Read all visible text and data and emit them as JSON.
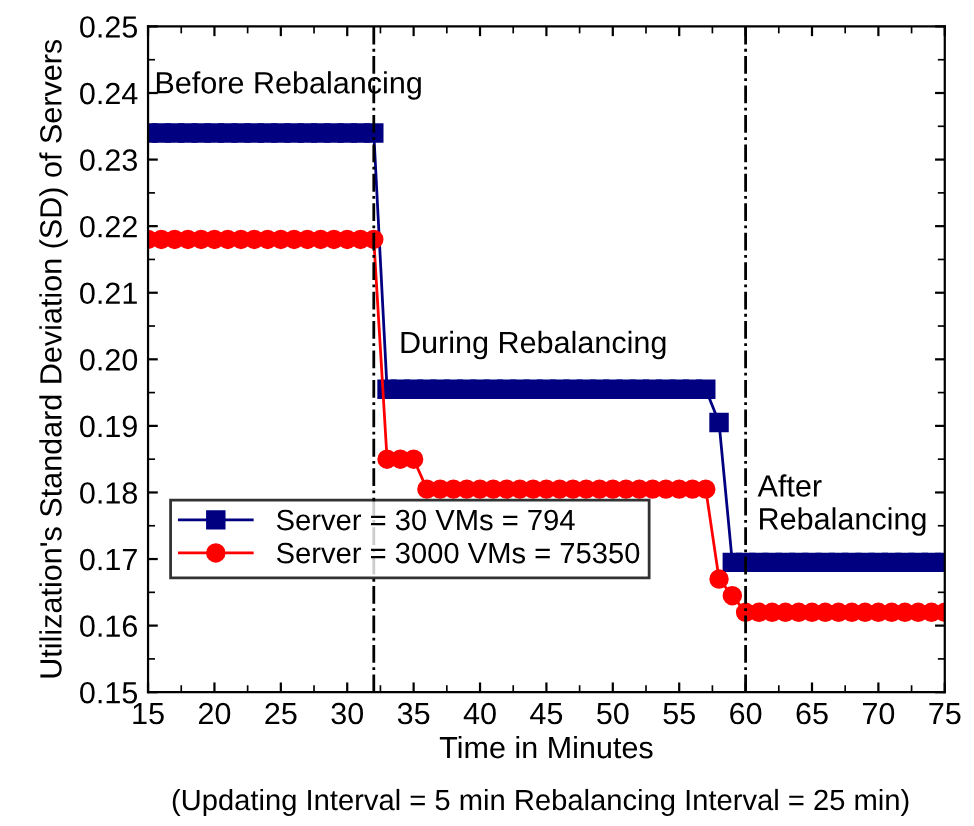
{
  "chart_data": {
    "type": "line",
    "xlabel": "Time in Minutes",
    "ylabel": "Utilization's Standard Deviation (SD) of Servers",
    "x": [
      15,
      16,
      17,
      18,
      19,
      20,
      21,
      22,
      23,
      24,
      25,
      26,
      27,
      28,
      29,
      30,
      31,
      32,
      33,
      34,
      35,
      36,
      37,
      38,
      39,
      40,
      41,
      42,
      43,
      44,
      45,
      46,
      47,
      48,
      49,
      50,
      51,
      52,
      53,
      54,
      55,
      56,
      57,
      58,
      59,
      60,
      61,
      62,
      63,
      64,
      65,
      66,
      67,
      68,
      69,
      70,
      71,
      72,
      73,
      74,
      75
    ],
    "series": [
      {
        "name": "Server = 30 VMs = 794",
        "color": "#000080",
        "marker": "square",
        "values": [
          0.234,
          0.234,
          0.234,
          0.234,
          0.234,
          0.234,
          0.234,
          0.234,
          0.234,
          0.234,
          0.234,
          0.234,
          0.234,
          0.234,
          0.234,
          0.234,
          0.234,
          0.234,
          0.1955,
          0.1955,
          0.1955,
          0.1955,
          0.1955,
          0.1955,
          0.1955,
          0.1955,
          0.1955,
          0.1955,
          0.1955,
          0.1955,
          0.1955,
          0.1955,
          0.1955,
          0.1955,
          0.1955,
          0.1955,
          0.1955,
          0.1955,
          0.1955,
          0.1955,
          0.1955,
          0.1955,
          0.1955,
          0.1905,
          0.1695,
          0.1695,
          0.1695,
          0.1695,
          0.1695,
          0.1695,
          0.1695,
          0.1695,
          0.1695,
          0.1695,
          0.1695,
          0.1695,
          0.1695,
          0.1695,
          0.1695,
          0.1695,
          0.1695
        ]
      },
      {
        "name": "Server = 3000 VMs = 75350",
        "color": "#ff0000",
        "marker": "circle",
        "values": [
          0.218,
          0.218,
          0.218,
          0.218,
          0.218,
          0.218,
          0.218,
          0.218,
          0.218,
          0.218,
          0.218,
          0.218,
          0.218,
          0.218,
          0.218,
          0.218,
          0.218,
          0.218,
          0.185,
          0.185,
          0.185,
          0.1805,
          0.1805,
          0.1805,
          0.1805,
          0.1805,
          0.1805,
          0.1805,
          0.1805,
          0.1805,
          0.1805,
          0.1805,
          0.1805,
          0.1805,
          0.1805,
          0.1805,
          0.1805,
          0.1805,
          0.1805,
          0.1805,
          0.1805,
          0.1805,
          0.1805,
          0.167,
          0.1645,
          0.162,
          0.162,
          0.162,
          0.162,
          0.162,
          0.162,
          0.162,
          0.162,
          0.162,
          0.162,
          0.162,
          0.162,
          0.162,
          0.162,
          0.162,
          0.162
        ]
      }
    ],
    "xlim": [
      15,
      75
    ],
    "xticks": [
      15,
      20,
      25,
      30,
      35,
      40,
      45,
      50,
      55,
      60,
      65,
      70,
      75
    ],
    "ylim": [
      0.15,
      0.25
    ],
    "yticks": [
      {
        "value": 0.15,
        "label": "0.15"
      },
      {
        "value": 0.16,
        "label": "0.16"
      },
      {
        "value": 0.17,
        "label": "0.17"
      },
      {
        "value": 0.18,
        "label": "0.18"
      },
      {
        "value": 0.19,
        "label": "0.19"
      },
      {
        "value": 0.2,
        "label": "0.20"
      },
      {
        "value": 0.21,
        "label": "0.21"
      },
      {
        "value": 0.22,
        "label": "0.22"
      },
      {
        "value": 0.23,
        "label": "0.23"
      },
      {
        "value": 0.24,
        "label": "0.24"
      },
      {
        "value": 0.25,
        "label": "0.25"
      }
    ],
    "ref_lines": [
      {
        "axis": "x",
        "value": 32,
        "color": "#000000",
        "line_style": "dashdot"
      },
      {
        "axis": "x",
        "value": 60,
        "color": "#000000",
        "line_style": "dashdot"
      }
    ],
    "annotations": [
      "Before Rebalancing",
      "During Rebalancing",
      "After\nRebalancing",
      "(Updating Interval = 5 min Rebalancing Interval = 25 min)"
    ],
    "grid": false,
    "legend": "left",
    "line_style": "solid"
  }
}
